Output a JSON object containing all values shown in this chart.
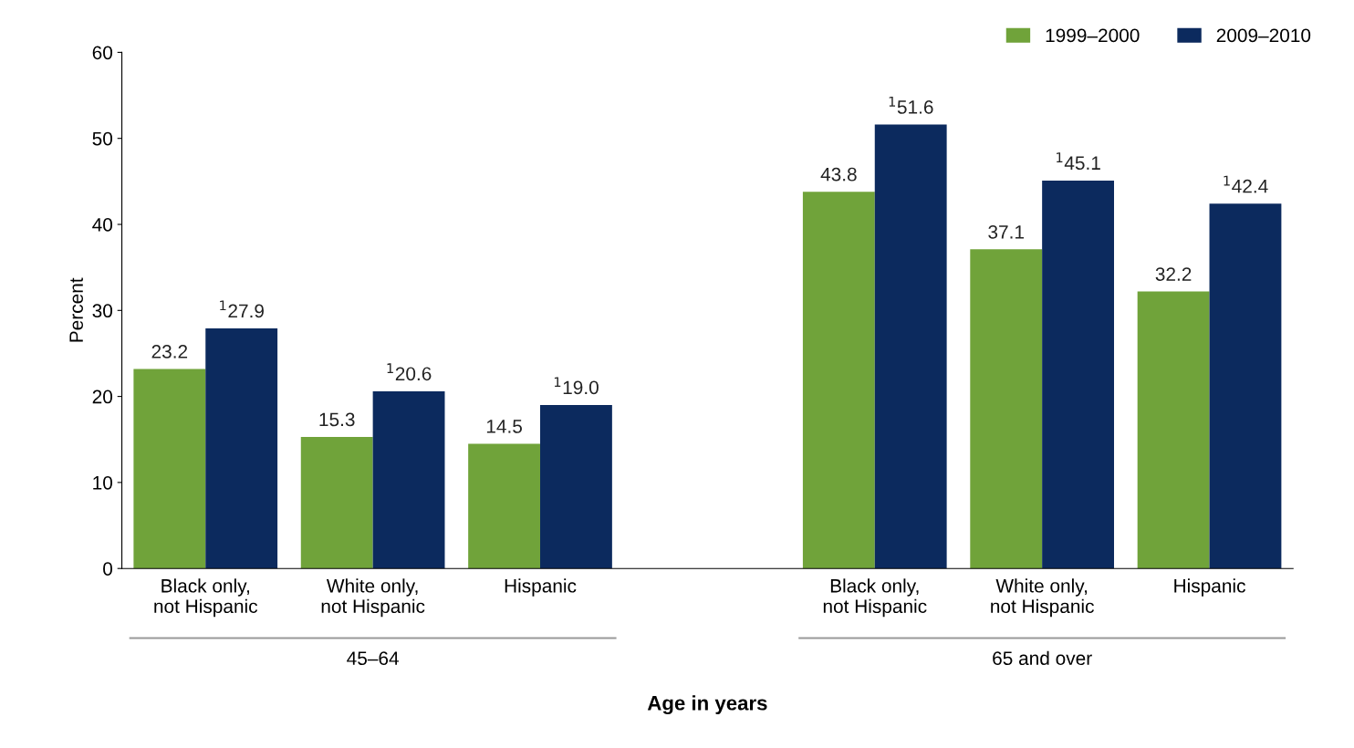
{
  "chart_data": {
    "type": "bar",
    "categories": [
      "Black only,\nnot Hispanic",
      "White only,\nnot Hispanic",
      "Hispanic",
      null,
      "Black only,\nnot Hispanic",
      "White only,\nnot Hispanic",
      "Hispanic"
    ],
    "series": [
      {
        "name": "1999–2000",
        "color": "#70a33a",
        "values": [
          23.2,
          15.3,
          14.5,
          null,
          43.8,
          37.1,
          32.2
        ],
        "value_labels": [
          "23.2",
          "15.3",
          "14.5",
          null,
          "43.8",
          "37.1",
          "32.2"
        ]
      },
      {
        "name": "2009–2010",
        "color": "#0c2a5e",
        "values": [
          27.9,
          20.6,
          19.0,
          null,
          51.6,
          45.1,
          42.4
        ],
        "value_labels": [
          "$^{1}$27.9",
          "$^{1}$20.6",
          "$^{1}$19.0",
          null,
          "$^{1}$51.6",
          "$^{1}$45.1",
          "$^{1}$42.4"
        ]
      }
    ],
    "annotations": [
      "45–64",
      "65 and over"
    ],
    "xlabel": "Age in years",
    "ylabel": "Percent",
    "ylim": [
      0,
      60
    ],
    "yticks": [
      0,
      10,
      20,
      30,
      40,
      50,
      60
    ],
    "grid": false,
    "legend": "top right"
  }
}
